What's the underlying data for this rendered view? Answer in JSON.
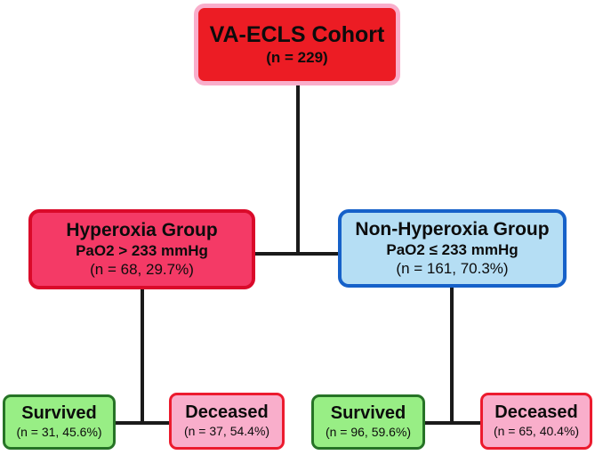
{
  "diagram": {
    "type": "flowchart",
    "line_color": "#1a1a1a",
    "nodes": {
      "cohort": {
        "title": "VA-ECLS Cohort",
        "count": "(n = 229)",
        "fill": "#ec1c24",
        "border": "#f9aecb"
      },
      "hyperoxia": {
        "title": "Hyperoxia Group",
        "criteria": "PaO2 > 233 mmHg",
        "count": "(n = 68, 29.7%)",
        "fill": "#f43a66",
        "border": "#da0a2a"
      },
      "non_hyperoxia": {
        "title": "Non-Hyperoxia Group",
        "criteria": "PaO2 ≤ 233 mmHg",
        "count": "(n = 161, 70.3%)",
        "fill": "#b5def4",
        "border": "#1661c9"
      },
      "hyperoxia_survived": {
        "title": "Survived",
        "count": "(n = 31, 45.6%)",
        "fill": "#98ee85",
        "border": "#267326"
      },
      "hyperoxia_deceased": {
        "title": "Deceased",
        "count": "(n = 37, 54.4%)",
        "fill": "#f9aecb",
        "border": "#ec1b2e"
      },
      "non_hyperoxia_survived": {
        "title": "Survived",
        "count": "(n = 96, 59.6%)",
        "fill": "#98ee85",
        "border": "#267326"
      },
      "non_hyperoxia_deceased": {
        "title": "Deceased",
        "count": "(n = 65, 40.4%)",
        "fill": "#f9aecb",
        "border": "#ec1b2e"
      }
    },
    "edges": [
      {
        "from": "cohort",
        "to": "hyperoxia"
      },
      {
        "from": "cohort",
        "to": "non_hyperoxia"
      },
      {
        "from": "hyperoxia",
        "to": "hyperoxia_survived"
      },
      {
        "from": "hyperoxia",
        "to": "hyperoxia_deceased"
      },
      {
        "from": "non_hyperoxia",
        "to": "non_hyperoxia_survived"
      },
      {
        "from": "non_hyperoxia",
        "to": "non_hyperoxia_deceased"
      }
    ]
  }
}
